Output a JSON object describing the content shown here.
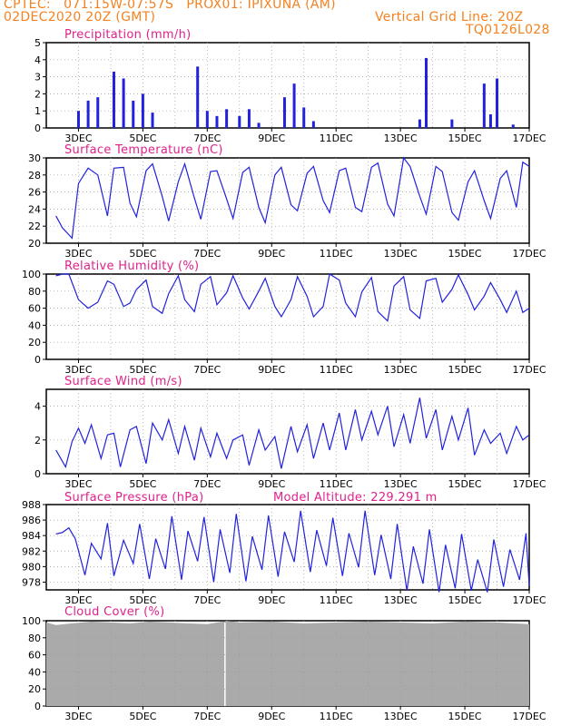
{
  "header": {
    "line1": "CPTEC:   071:15W-07:57S   PROX01: IPIXUNA (AM)",
    "line2_left": "02DEC2020 20Z (GMT)",
    "line2_right": "Vertical Grid Line: 20Z",
    "code": "TQ0126L028"
  },
  "colors": {
    "header": "#f58220",
    "title": "#e0218a",
    "series": "#2222dd",
    "cloud": "#aaaaaa"
  },
  "x_labels": [
    "3DEC",
    "5DEC",
    "7DEC",
    "9DEC",
    "11DEC",
    "13DEC",
    "15DEC",
    "17DEC"
  ],
  "panels": {
    "precip": {
      "title": "Precipitation (mm/h)",
      "yticks": [
        "0",
        "1",
        "2",
        "3",
        "4",
        "5"
      ]
    },
    "temp": {
      "title": "Surface Temperature (nC)",
      "yticks": [
        "20",
        "22",
        "24",
        "26",
        "28",
        "30"
      ]
    },
    "rh": {
      "title": "Relative Humidity (%)",
      "yticks": [
        "0",
        "20",
        "40",
        "60",
        "80",
        "100"
      ]
    },
    "wind": {
      "title": "Surface Wind (m/s)",
      "yticks": [
        "0",
        "2",
        "4"
      ]
    },
    "pres": {
      "title": "Surface Pressure (hPa)",
      "extra": "Model Altitude: 229.291 m",
      "yticks": [
        "978",
        "980",
        "982",
        "984",
        "986",
        "988"
      ]
    },
    "cloud": {
      "title": "Cloud Cover (%)",
      "yticks": [
        "0",
        "20",
        "40",
        "60",
        "80",
        "100"
      ]
    }
  },
  "chart_data": [
    {
      "type": "bar",
      "title": "Precipitation (mm/h)",
      "ylim": [
        0,
        5
      ],
      "x": [
        "3DEC",
        "3.3",
        "3.6",
        "4.1",
        "4.4",
        "4.7",
        "5.0",
        "5.3",
        "6.7",
        "7.0",
        "7.3",
        "7.6",
        "8.0",
        "8.3",
        "8.6",
        "9.4",
        "9.7",
        "10.0",
        "10.3",
        "13.6",
        "13.8",
        "14.6",
        "15.6",
        "15.8",
        "16.0",
        "16.5"
      ],
      "values": [
        1.0,
        1.6,
        1.8,
        3.3,
        2.9,
        1.6,
        2.0,
        0.9,
        3.6,
        1.0,
        0.7,
        1.1,
        0.7,
        1.1,
        0.3,
        1.8,
        2.6,
        1.2,
        0.4,
        0.5,
        4.1,
        0.5,
        2.6,
        0.8,
        2.9,
        0.2
      ]
    },
    {
      "type": "line",
      "title": "Surface Temperature (nC)",
      "ylim": [
        20,
        30
      ],
      "x": [
        2.3,
        2.5,
        2.7,
        2.8,
        3.0,
        3.3,
        3.6,
        3.9,
        4.1,
        4.4,
        4.6,
        4.8,
        5.1,
        5.3,
        5.6,
        5.8,
        6.1,
        6.3,
        6.6,
        6.8,
        7.1,
        7.3,
        7.6,
        7.8,
        8.1,
        8.3,
        8.6,
        8.8,
        9.1,
        9.3,
        9.6,
        9.8,
        10.1,
        10.3,
        10.6,
        10.8,
        11.1,
        11.3,
        11.6,
        11.8,
        12.1,
        12.3,
        12.6,
        12.8,
        13.1,
        13.3,
        13.6,
        13.8,
        14.1,
        14.3,
        14.6,
        14.8,
        15.1,
        15.3,
        15.6,
        15.8,
        16.1,
        16.3,
        16.6,
        16.8,
        17.0
      ],
      "values": [
        23.2,
        21.8,
        21.0,
        20.6,
        27.0,
        28.8,
        28.0,
        23.2,
        28.8,
        28.9,
        24.7,
        23.1,
        28.5,
        29.3,
        25.5,
        22.6,
        27.2,
        29.3,
        25.3,
        22.8,
        28.4,
        28.5,
        25.2,
        22.9,
        28.3,
        28.9,
        24.2,
        22.4,
        28.0,
        28.9,
        24.5,
        23.8,
        28.2,
        29.0,
        25.0,
        23.6,
        28.5,
        28.8,
        24.2,
        23.7,
        28.9,
        29.4,
        24.6,
        23.2,
        30.0,
        29.0,
        25.5,
        23.4,
        29.0,
        28.4,
        23.6,
        22.7,
        27.2,
        28.5,
        25.0,
        22.9,
        27.6,
        28.5,
        24.2,
        29.5,
        29.0
      ]
    },
    {
      "type": "line",
      "title": "Relative Humidity (%)",
      "ylim": [
        0,
        100
      ],
      "x": [
        2.3,
        2.5,
        2.7,
        3.0,
        3.3,
        3.6,
        3.9,
        4.1,
        4.4,
        4.6,
        4.8,
        5.1,
        5.3,
        5.6,
        5.8,
        6.1,
        6.3,
        6.6,
        6.8,
        7.1,
        7.3,
        7.6,
        7.8,
        8.1,
        8.3,
        8.6,
        8.8,
        9.1,
        9.3,
        9.6,
        9.8,
        10.1,
        10.3,
        10.6,
        10.8,
        11.1,
        11.3,
        11.6,
        11.8,
        12.1,
        12.3,
        12.6,
        12.8,
        13.1,
        13.3,
        13.6,
        13.8,
        14.1,
        14.3,
        14.6,
        14.8,
        15.1,
        15.3,
        15.6,
        15.8,
        16.1,
        16.3,
        16.6,
        16.8,
        17.0
      ],
      "values": [
        98,
        100,
        100,
        70,
        60,
        67,
        92,
        88,
        62,
        66,
        82,
        93,
        62,
        54,
        77,
        98,
        70,
        56,
        88,
        97,
        64,
        78,
        98,
        72,
        59,
        80,
        95,
        62,
        50,
        70,
        97,
        74,
        50,
        62,
        100,
        93,
        66,
        50,
        79,
        96,
        56,
        45,
        86,
        97,
        58,
        48,
        92,
        95,
        67,
        82,
        99,
        76,
        58,
        74,
        90,
        70,
        55,
        80,
        55,
        60
      ]
    },
    {
      "type": "line",
      "title": "Surface Wind (m/s)",
      "ylim": [
        0,
        5
      ],
      "x": [
        2.3,
        2.6,
        2.8,
        3.0,
        3.2,
        3.4,
        3.7,
        3.9,
        4.1,
        4.3,
        4.6,
        4.8,
        5.1,
        5.3,
        5.6,
        5.8,
        6.1,
        6.3,
        6.6,
        6.8,
        7.1,
        7.3,
        7.6,
        7.8,
        8.1,
        8.3,
        8.6,
        8.8,
        9.1,
        9.3,
        9.6,
        9.8,
        10.1,
        10.3,
        10.6,
        10.8,
        11.1,
        11.3,
        11.6,
        11.8,
        12.1,
        12.3,
        12.6,
        12.8,
        13.1,
        13.3,
        13.6,
        13.8,
        14.1,
        14.3,
        14.6,
        14.8,
        15.1,
        15.3,
        15.6,
        15.8,
        16.1,
        16.3,
        16.6,
        16.8,
        17.0
      ],
      "values": [
        1.4,
        0.4,
        1.9,
        2.7,
        1.8,
        2.9,
        0.9,
        2.3,
        2.4,
        0.4,
        2.6,
        2.8,
        0.6,
        3.0,
        2.0,
        3.2,
        1.2,
        2.8,
        0.8,
        2.7,
        1.0,
        2.4,
        0.9,
        2.0,
        2.3,
        0.5,
        2.6,
        1.4,
        2.2,
        0.3,
        2.8,
        1.3,
        2.9,
        0.9,
        3.0,
        1.4,
        3.6,
        1.4,
        3.8,
        2.0,
        3.7,
        2.3,
        4.0,
        1.6,
        3.5,
        1.8,
        4.5,
        2.1,
        3.8,
        1.4,
        3.4,
        2.0,
        3.9,
        1.1,
        2.6,
        1.8,
        2.4,
        1.2,
        2.8,
        2.0,
        2.3
      ]
    },
    {
      "type": "line",
      "title": "Surface Pressure (hPa)",
      "ylim": [
        977,
        988
      ],
      "x": [
        2.3,
        2.5,
        2.7,
        2.9,
        3.2,
        3.4,
        3.7,
        3.9,
        4.1,
        4.4,
        4.7,
        4.9,
        5.2,
        5.4,
        5.7,
        5.9,
        6.2,
        6.4,
        6.7,
        6.9,
        7.2,
        7.4,
        7.7,
        7.9,
        8.2,
        8.4,
        8.7,
        8.9,
        9.2,
        9.4,
        9.7,
        9.9,
        10.2,
        10.4,
        10.7,
        10.9,
        11.2,
        11.4,
        11.7,
        11.9,
        12.2,
        12.4,
        12.7,
        12.9,
        13.2,
        13.4,
        13.7,
        13.9,
        14.2,
        14.4,
        14.7,
        14.9,
        15.2,
        15.4,
        15.7,
        15.9,
        16.2,
        16.4,
        16.7,
        16.9,
        17.0
      ],
      "values": [
        984.2,
        984.4,
        985.0,
        983.6,
        978.9,
        983.0,
        981.0,
        985.6,
        978.8,
        983.4,
        980.4,
        985.5,
        978.4,
        983.6,
        979.7,
        986.5,
        978.3,
        984.6,
        980.7,
        986.4,
        978.0,
        984.8,
        979.2,
        986.8,
        978.1,
        983.9,
        979.6,
        986.6,
        978.7,
        984.5,
        980.6,
        987.2,
        979.3,
        984.7,
        980.1,
        986.3,
        978.8,
        984.3,
        979.9,
        987.2,
        978.9,
        984.1,
        978.4,
        985.5,
        976.9,
        982.6,
        977.8,
        984.8,
        976.7,
        982.8,
        977.2,
        984.2,
        976.9,
        980.9,
        976.7,
        983.5,
        977.4,
        982.2,
        978.3,
        984.3,
        977.5
      ]
    },
    {
      "type": "area",
      "title": "Cloud Cover (%)",
      "ylim": [
        0,
        100
      ],
      "x": [
        2.0,
        2.3,
        2.8,
        3.4,
        4.0,
        4.6,
        5.2,
        5.8,
        6.4,
        7.0,
        7.3,
        7.5,
        7.6,
        8.0,
        9.0,
        10.0,
        11.0,
        12.0,
        13.0,
        14.0,
        15.0,
        16.0,
        17.0
      ],
      "values": [
        98,
        95,
        97,
        99,
        98,
        97,
        99,
        98,
        97,
        96,
        98,
        99,
        100,
        98,
        99,
        97,
        98,
        99,
        98,
        97,
        99,
        98,
        96
      ]
    }
  ]
}
